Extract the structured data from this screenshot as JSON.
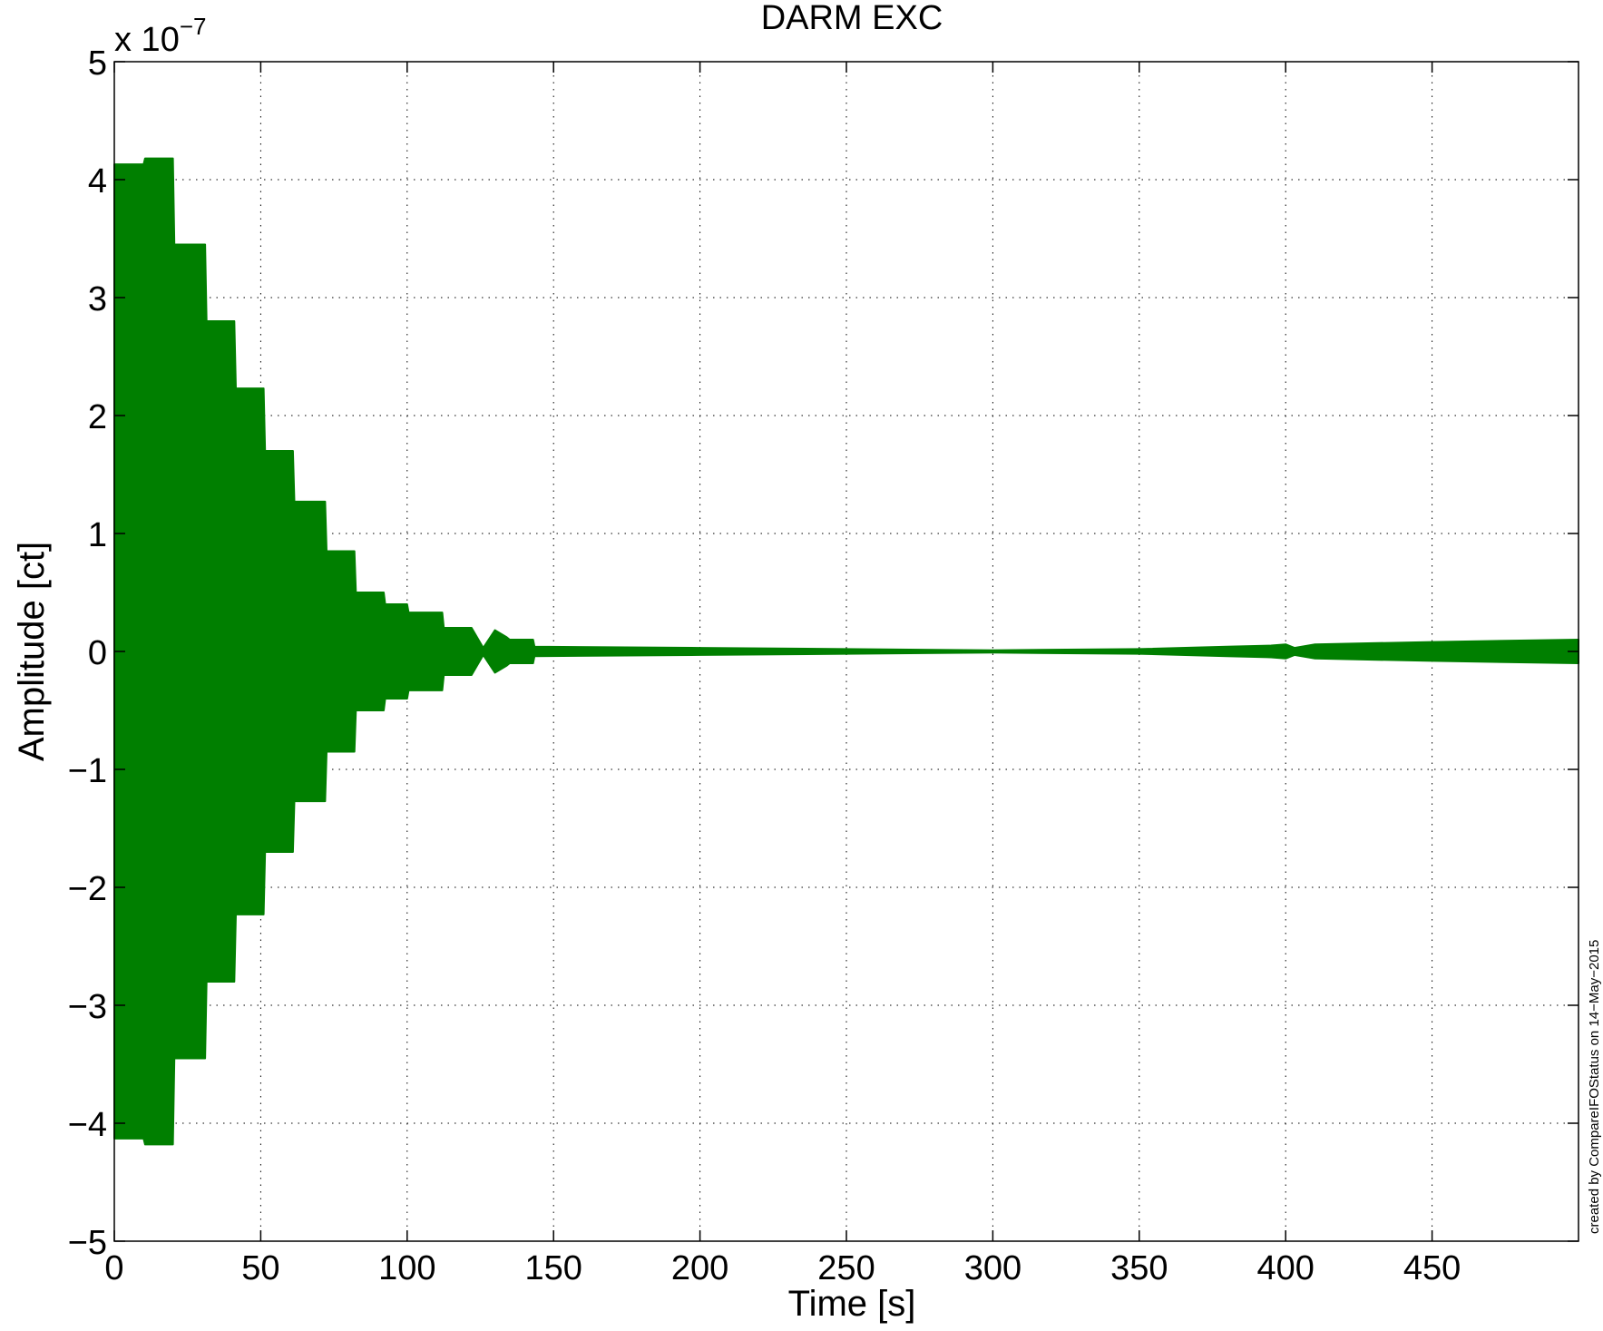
{
  "chart_data": {
    "type": "area",
    "title": "DARM EXC",
    "xlabel": "Time [s]",
    "ylabel": "Amplitude [ct]",
    "y_multiplier": {
      "base": "x 10",
      "exponent": "−7"
    },
    "xlim": [
      0,
      500
    ],
    "ylim": [
      -5,
      5
    ],
    "x_ticks": [
      0,
      50,
      100,
      150,
      200,
      250,
      300,
      350,
      400,
      450
    ],
    "x_tick_labels": [
      "0",
      "50",
      "100",
      "150",
      "200",
      "250",
      "300",
      "350",
      "400",
      "450"
    ],
    "y_ticks": [
      5,
      4,
      3,
      2,
      1,
      0,
      -1,
      -2,
      -3,
      -4,
      -5
    ],
    "y_tick_labels": [
      "5",
      "4",
      "3",
      "2",
      "1",
      "0",
      "−1",
      "−2",
      "−3",
      "−4",
      "−5"
    ],
    "grid": true,
    "series": [
      {
        "color": "#007f00",
        "envelope_x": [
          0,
          10,
          10.5,
          20,
          20.5,
          31,
          31.5,
          41,
          41.5,
          51,
          51.5,
          61,
          61.5,
          72,
          72.5,
          82,
          82.5,
          92,
          92.5,
          100,
          100.5,
          112,
          112.5,
          122,
          126,
          130,
          134,
          135,
          143,
          143.5,
          200,
          300,
          350,
          380,
          395,
          400,
          403,
          410,
          450,
          500
        ],
        "envelope_y": [
          4.13,
          4.13,
          4.18,
          4.18,
          3.45,
          3.45,
          2.8,
          2.8,
          2.23,
          2.23,
          1.7,
          1.7,
          1.27,
          1.27,
          0.85,
          0.85,
          0.5,
          0.5,
          0.4,
          0.4,
          0.33,
          0.33,
          0.2,
          0.2,
          0.03,
          0.18,
          0.12,
          0.1,
          0.1,
          0.04,
          0.03,
          0.01,
          0.02,
          0.04,
          0.05,
          0.06,
          0.03,
          0.06,
          0.08,
          0.1
        ]
      }
    ],
    "annotation": "created by CompareIFOStatus on 14−May−2015"
  }
}
